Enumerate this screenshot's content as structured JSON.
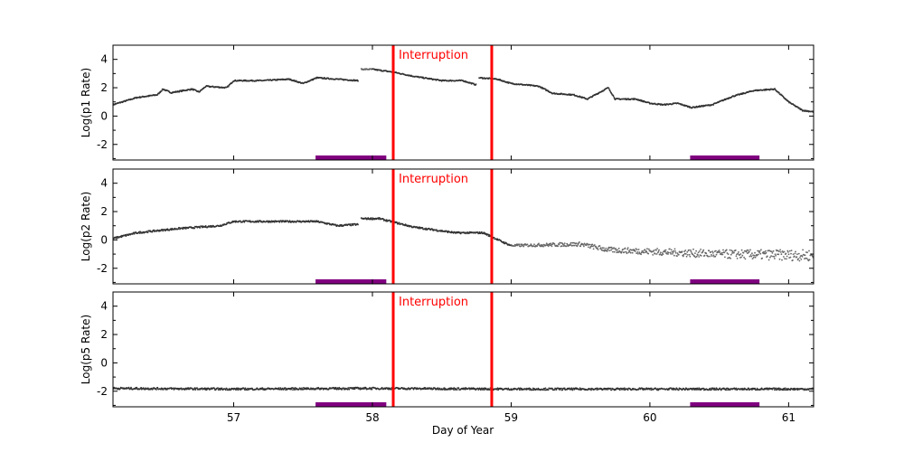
{
  "chart_data": {
    "type": "scatter",
    "xlabel": "Day of Year",
    "xlim": [
      56.13,
      61.18
    ],
    "xticks": [
      "57",
      "58",
      "59",
      "60",
      "61"
    ],
    "xtick_values": [
      57,
      58,
      59,
      60,
      61
    ],
    "grid": false,
    "annotation": "Interruption",
    "interruption_lines": [
      58.15,
      58.86
    ],
    "interruption_color": "#ff0000",
    "shaded_intervals": [
      [
        57.59,
        58.1
      ],
      [
        60.29,
        60.79
      ]
    ],
    "interval_color": "#800080",
    "point_color": "#333333",
    "panels": [
      {
        "ylabel": "Log(p1 Rate)",
        "ylim": [
          -3.1,
          5.0
        ],
        "yticks": [
          "-2",
          "0",
          "2",
          "4"
        ],
        "ytick_values": [
          -2,
          0,
          2,
          4
        ],
        "segments": [
          [
            [
              56.13,
              0.8
            ],
            [
              56.3,
              1.3
            ],
            [
              56.45,
              1.5
            ],
            [
              56.49,
              1.9
            ],
            [
              56.55,
              1.65
            ],
            [
              56.7,
              1.9
            ],
            [
              56.75,
              1.7
            ],
            [
              56.8,
              2.1
            ],
            [
              56.95,
              2.0
            ],
            [
              57.0,
              2.5
            ],
            [
              57.2,
              2.5
            ],
            [
              57.4,
              2.6
            ],
            [
              57.5,
              2.3
            ],
            [
              57.6,
              2.7
            ],
            [
              57.75,
              2.6
            ],
            [
              57.9,
              2.5
            ]
          ],
          [
            [
              57.92,
              3.3
            ],
            [
              58.0,
              3.3
            ],
            [
              58.15,
              3.1
            ],
            [
              58.3,
              2.8
            ],
            [
              58.5,
              2.5
            ],
            [
              58.65,
              2.5
            ],
            [
              58.75,
              2.2
            ]
          ],
          [
            [
              58.77,
              2.7
            ],
            [
              58.9,
              2.6
            ],
            [
              59.0,
              2.3
            ],
            [
              59.2,
              2.1
            ],
            [
              59.3,
              1.6
            ],
            [
              59.45,
              1.5
            ],
            [
              59.55,
              1.2
            ],
            [
              59.7,
              2.0
            ],
            [
              59.75,
              1.2
            ],
            [
              59.9,
              1.2
            ],
            [
              60.0,
              0.9
            ],
            [
              60.1,
              0.8
            ],
            [
              60.2,
              0.9
            ],
            [
              60.3,
              0.6
            ],
            [
              60.45,
              0.8
            ],
            [
              60.6,
              1.4
            ],
            [
              60.75,
              1.8
            ],
            [
              60.9,
              1.9
            ],
            [
              61.0,
              1.0
            ],
            [
              61.1,
              0.4
            ],
            [
              61.18,
              0.3
            ]
          ]
        ]
      },
      {
        "ylabel": "Log(p2 Rate)",
        "ylim": [
          -3.1,
          5.0
        ],
        "yticks": [
          "-2",
          "0",
          "2",
          "4"
        ],
        "ytick_values": [
          -2,
          0,
          2,
          4
        ],
        "segments": [
          [
            [
              56.13,
              0.1
            ],
            [
              56.3,
              0.5
            ],
            [
              56.6,
              0.8
            ],
            [
              56.9,
              1.0
            ],
            [
              57.0,
              1.3
            ],
            [
              57.6,
              1.3
            ],
            [
              57.75,
              1.0
            ],
            [
              57.9,
              1.1
            ]
          ],
          [
            [
              57.92,
              1.5
            ],
            [
              58.05,
              1.5
            ],
            [
              58.3,
              0.9
            ],
            [
              58.6,
              0.5
            ],
            [
              58.8,
              0.5
            ],
            [
              58.95,
              -0.2
            ],
            [
              59.0,
              -0.4
            ],
            [
              59.5,
              -0.3
            ],
            [
              59.7,
              -0.7
            ],
            [
              60.2,
              -0.9
            ],
            [
              60.5,
              -1.0
            ],
            [
              61.18,
              -1.1
            ]
          ]
        ]
      },
      {
        "ylabel": "Log(p5 Rate)",
        "ylim": [
          -3.1,
          5.0
        ],
        "yticks": [
          "-2",
          "0",
          "2",
          "4"
        ],
        "ytick_values": [
          -2,
          0,
          2,
          4
        ],
        "segments": [
          [
            [
              56.13,
              -1.8
            ],
            [
              57.0,
              -1.85
            ],
            [
              58.0,
              -1.8
            ],
            [
              59.0,
              -1.85
            ],
            [
              60.0,
              -1.85
            ],
            [
              61.18,
              -1.85
            ]
          ]
        ]
      }
    ]
  }
}
